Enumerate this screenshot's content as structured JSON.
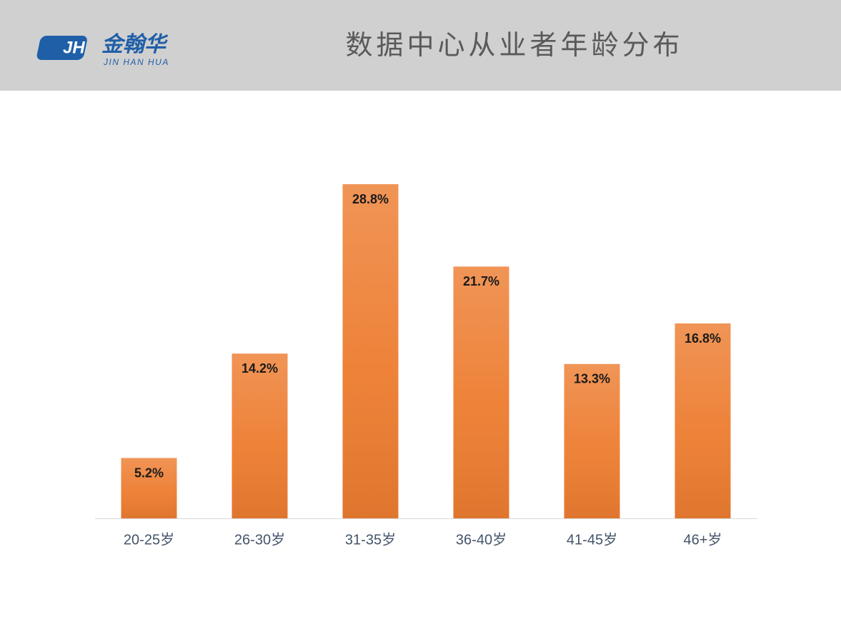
{
  "header": {
    "logo_mark": "JH",
    "logo_name": "金翰华",
    "logo_subtitle": "JIN HAN HUA"
  },
  "chart_data": {
    "type": "bar",
    "title": "数据中心从业者年龄分布",
    "categories": [
      "20-25岁",
      "26-30岁",
      "31-35岁",
      "36-40岁",
      "41-45岁",
      "46+岁"
    ],
    "values": [
      5.2,
      14.2,
      28.8,
      21.7,
      13.3,
      16.8
    ],
    "value_labels": [
      "5.2%",
      "14.2%",
      "28.8%",
      "21.7%",
      "13.3%",
      "16.8%"
    ],
    "color": "#ed7d31"
  }
}
